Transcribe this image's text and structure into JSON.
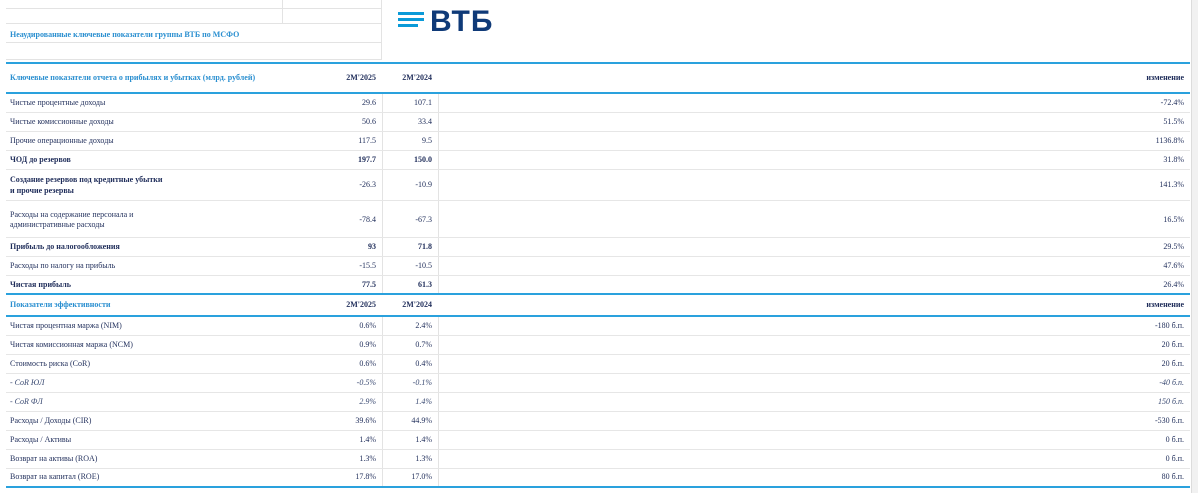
{
  "sheet_title": "Неаудированные ключевые показатели группы ВТБ по МСФО",
  "logo": {
    "text": "ВТБ",
    "color": "#0f3a78",
    "bars_color": "#0a9ad8"
  },
  "accent_color": "#2aa1dd",
  "income": {
    "title": "Ключевые показатели отчета о прибылях и убытках (млрд. рублей)",
    "col1": "2М'2025",
    "col2": "2М'2024",
    "col3": "изменение",
    "rows": [
      {
        "label": "Чистые процентные доходы",
        "v1": "29.6",
        "v2": "107.1",
        "v3": "-72.4%"
      },
      {
        "label": "Чистые комиссионные доходы",
        "v1": "50.6",
        "v2": "33.4",
        "v3": "51.5%"
      },
      {
        "label": "Прочие операционные доходы",
        "v1": "117.5",
        "v2": "9.5",
        "v3": "1136.8%"
      },
      {
        "label": "ЧОД до резервов",
        "v1": "197.7",
        "v2": "150.0",
        "v3": "31.8%"
      },
      {
        "label": "Создание резервов под кредитные убытки",
        "label2": "и прочие резервы",
        "v1": "-26.3",
        "v2": "-10.9",
        "v3": "141.3%"
      },
      {
        "label": "Расходы на содержание персонала и",
        "label2": "административные расходы",
        "v1": "-78.4",
        "v2": "-67.3",
        "v3": "16.5%"
      },
      {
        "label": "Прибыль до налогообложения",
        "v1": "93",
        "v2": "71.8",
        "v3": "29.5%"
      },
      {
        "label": "Расходы по налогу на прибыль",
        "v1": "-15.5",
        "v2": "-10.5",
        "v3": "47.6%"
      },
      {
        "label": "Чистая прибыль",
        "v1": "77.5",
        "v2": "61.3",
        "v3": "26.4%"
      }
    ]
  },
  "efficiency": {
    "title": "Показатели эффективности",
    "col1": "2М'2025",
    "col2": "2М'2024",
    "col3": "изменение",
    "rows": [
      {
        "label": "Чистая процентная маржа (NIM)",
        "v1": "0.6%",
        "v2": "2.4%",
        "v3": "-180 б.п."
      },
      {
        "label": "Чистая комиссионная маржа (NCM)",
        "v1": "0.9%",
        "v2": "0.7%",
        "v3": "20 б.п."
      },
      {
        "label": "Стоимость риска (CoR)",
        "v1": "0.6%",
        "v2": "0.4%",
        "v3": "20 б.п."
      },
      {
        "label": "-  CoR ЮЛ",
        "v1": "-0.5%",
        "v2": "-0.1%",
        "v3": "-40 б.п."
      },
      {
        "label": "-  CoR ФЛ",
        "v1": "2.9%",
        "v2": "1.4%",
        "v3": "150 б.п."
      },
      {
        "label": "Расходы / Доходы (CIR)",
        "v1": "39.6%",
        "v2": "44.9%",
        "v3": "-530 б.п."
      },
      {
        "label": "Расходы / Активы",
        "v1": "1.4%",
        "v2": "1.4%",
        "v3": "0 б.п."
      },
      {
        "label": "Возврат на активы (ROA)",
        "v1": "1.3%",
        "v2": "1.3%",
        "v3": "0 б.п."
      },
      {
        "label": "Возврат на капитал (ROE)",
        "v1": "17.8%",
        "v2": "17.0%",
        "v3": "80 б.п."
      }
    ]
  }
}
